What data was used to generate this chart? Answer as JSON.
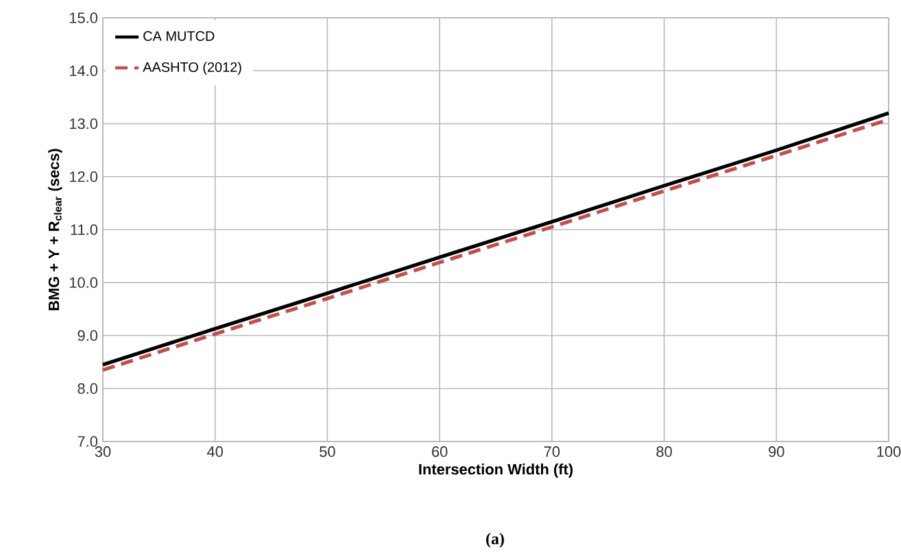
{
  "chart_data": {
    "type": "line",
    "xlabel": "Intersection Width (ft)",
    "ylabel": "BMG + Y + R$_{clear}$ (secs)",
    "x": [
      30,
      40,
      50,
      60,
      70,
      80,
      90,
      100
    ],
    "series": [
      {
        "name": "CA MUTCD",
        "color": "#000000",
        "line_style": "solid",
        "values": [
          8.45,
          9.13,
          9.8,
          10.48,
          11.15,
          11.83,
          12.5,
          13.2
        ]
      },
      {
        "name": "AASHTO (2012)",
        "color": "#c0504d",
        "line_style": "dashed",
        "values": [
          8.35,
          9.03,
          9.7,
          10.38,
          11.05,
          11.73,
          12.4,
          13.08
        ]
      }
    ],
    "xlim": [
      30,
      100
    ],
    "xticks": [
      30,
      40,
      50,
      60,
      70,
      80,
      90,
      100
    ],
    "ylim": [
      7,
      15
    ],
    "yticks": [
      {
        "value": 7,
        "label": "7.0"
      },
      {
        "value": 8,
        "label": "8.0"
      },
      {
        "value": 9,
        "label": "9.0"
      },
      {
        "value": 10,
        "label": "10.0"
      },
      {
        "value": 11,
        "label": "11.0"
      },
      {
        "value": 12,
        "label": "12.0"
      },
      {
        "value": 13,
        "label": "13.0"
      },
      {
        "value": 14,
        "label": "14.0"
      },
      {
        "value": 15,
        "label": "15.0"
      }
    ],
    "grid": true,
    "legend": "top left",
    "marker": "none",
    "annotations": [
      "(a)"
    ]
  }
}
